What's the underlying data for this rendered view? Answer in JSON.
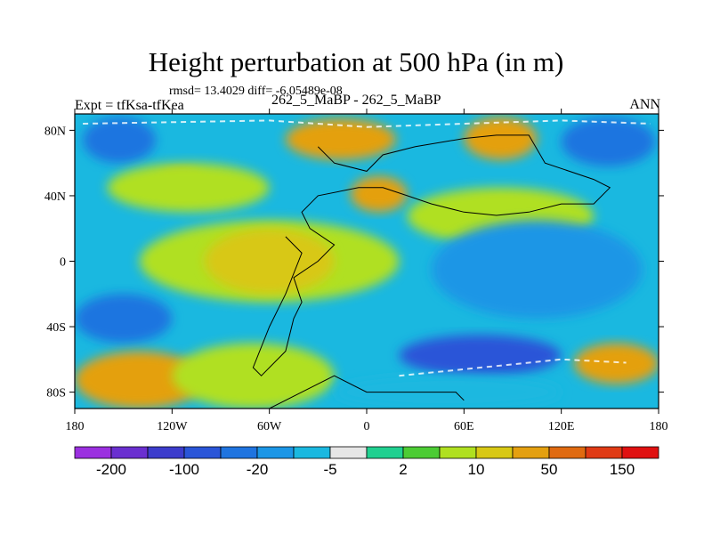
{
  "title": "Height perturbation at 500 hPa (in m)",
  "stats": "rmsd= 13.4029 diff= -6.05489e-08",
  "left_label": "Expt = tfKsa-tfKea",
  "center_label": "262_5_MaBP - 262_5_MaBP",
  "right_label": "ANN",
  "chart_data": {
    "type": "heatmap",
    "title": "Height perturbation at 500 hPa (in m)",
    "xlim": [
      -180,
      180
    ],
    "ylim": [
      -90,
      90
    ],
    "x_ticks": [
      {
        "value": -180,
        "label": "180"
      },
      {
        "value": -120,
        "label": "120W"
      },
      {
        "value": -60,
        "label": "60W"
      },
      {
        "value": 0,
        "label": "0"
      },
      {
        "value": 60,
        "label": "60E"
      },
      {
        "value": 120,
        "label": "120E"
      },
      {
        "value": 180,
        "label": "180"
      }
    ],
    "y_ticks": [
      {
        "value": 80,
        "label": "80N"
      },
      {
        "value": 40,
        "label": "40N"
      },
      {
        "value": 0,
        "label": "0"
      },
      {
        "value": -40,
        "label": "40S"
      },
      {
        "value": -80,
        "label": "80S"
      }
    ],
    "colorbar": {
      "colors": [
        "#9b30e0",
        "#6a2fd0",
        "#3c3ccc",
        "#2a55d8",
        "#1f74e0",
        "#1b96e6",
        "#1ab8e0",
        "#e6e6e6",
        "#20d090",
        "#4ccc34",
        "#b0e020",
        "#d8c814",
        "#e4a010",
        "#e06a10",
        "#e03a14",
        "#e01010"
      ],
      "labels": [
        {
          "boundary": 1,
          "label": "-200"
        },
        {
          "boundary": 3,
          "label": "-100"
        },
        {
          "boundary": 5,
          "label": "-20"
        },
        {
          "boundary": 7,
          "label": "-5"
        },
        {
          "boundary": 9,
          "label": "2"
        },
        {
          "boundary": 11,
          "label": "10"
        },
        {
          "boundary": 13,
          "label": "50"
        },
        {
          "boundary": 15,
          "label": "150"
        }
      ]
    },
    "regions": [
      {
        "name": "background",
        "level": 6,
        "lon": [
          -180,
          180
        ],
        "lat": [
          -90,
          90
        ]
      },
      {
        "name": "north-polar-blue-west",
        "level": 4,
        "lon": [
          -175,
          -130
        ],
        "lat": [
          60,
          88
        ]
      },
      {
        "name": "north-polar-blue-east",
        "level": 4,
        "lon": [
          120,
          178
        ],
        "lat": [
          58,
          88
        ]
      },
      {
        "name": "north-yellow-atlantic",
        "level": 12,
        "lon": [
          -50,
          18
        ],
        "lat": [
          62,
          87
        ]
      },
      {
        "name": "north-yellow-eurasia",
        "level": 12,
        "lon": [
          60,
          105
        ],
        "lat": [
          62,
          88
        ]
      },
      {
        "name": "n-america-yellow",
        "level": 12,
        "lon": [
          -130,
          -100
        ],
        "lat": [
          38,
          56
        ]
      },
      {
        "name": "n-america-green",
        "level": 10,
        "lon": [
          -160,
          -60
        ],
        "lat": [
          30,
          60
        ]
      },
      {
        "name": "n-europe-yellow",
        "level": 12,
        "lon": [
          -10,
          25
        ],
        "lat": [
          30,
          52
        ]
      },
      {
        "name": "asia-yellow",
        "level": 12,
        "lon": [
          60,
          110
        ],
        "lat": [
          22,
          38
        ]
      },
      {
        "name": "asia-green",
        "level": 10,
        "lon": [
          25,
          140
        ],
        "lat": [
          10,
          45
        ]
      },
      {
        "name": "tropical-green",
        "level": 10,
        "lon": [
          -140,
          20
        ],
        "lat": [
          -25,
          25
        ]
      },
      {
        "name": "tropical-yellow",
        "level": 11,
        "lon": [
          -100,
          -20
        ],
        "lat": [
          -20,
          20
        ]
      },
      {
        "name": "pacific-blue",
        "level": 5,
        "lon": [
          40,
          170
        ],
        "lat": [
          -35,
          25
        ]
      },
      {
        "name": "s-pacific-blue-west",
        "level": 4,
        "lon": [
          -180,
          -120
        ],
        "lat": [
          -50,
          -20
        ]
      },
      {
        "name": "south-yellow-west",
        "level": 12,
        "lon": [
          -180,
          -100
        ],
        "lat": [
          -90,
          -55
        ]
      },
      {
        "name": "south-yellow-east",
        "level": 12,
        "lon": [
          128,
          180
        ],
        "lat": [
          -75,
          -50
        ]
      },
      {
        "name": "south-green-atlantic",
        "level": 10,
        "lon": [
          -120,
          -20
        ],
        "lat": [
          -90,
          -50
        ]
      },
      {
        "name": "southern-ocean-blue",
        "level": 3,
        "lon": [
          20,
          120
        ],
        "lat": [
          -70,
          -45
        ]
      },
      {
        "name": "south-polar-cyan",
        "level": 6,
        "lon": [
          -20,
          120
        ],
        "lat": [
          -90,
          -70
        ]
      }
    ],
    "coastline": [
      [
        [
          -80,
          -90
        ],
        [
          -60,
          -90
        ],
        [
          -40,
          -80
        ],
        [
          -20,
          -70
        ],
        [
          0,
          -80
        ],
        [
          30,
          -80
        ],
        [
          55,
          -80
        ],
        [
          60,
          -85
        ]
      ],
      [
        [
          -30,
          70
        ],
        [
          -20,
          60
        ],
        [
          0,
          55
        ],
        [
          10,
          65
        ],
        [
          30,
          70
        ],
        [
          60,
          75
        ],
        [
          80,
          77
        ],
        [
          100,
          77
        ],
        [
          110,
          60
        ],
        [
          140,
          50
        ],
        [
          150,
          45
        ],
        [
          140,
          35
        ],
        [
          120,
          35
        ],
        [
          100,
          30
        ],
        [
          80,
          28
        ],
        [
          60,
          30
        ],
        [
          40,
          35
        ],
        [
          25,
          40
        ],
        [
          10,
          45
        ],
        [
          -5,
          45
        ],
        [
          -30,
          40
        ],
        [
          -40,
          30
        ],
        [
          -35,
          20
        ],
        [
          -20,
          10
        ],
        [
          -30,
          0
        ],
        [
          -45,
          -10
        ],
        [
          -40,
          -25
        ],
        [
          -45,
          -35
        ],
        [
          -50,
          -55
        ],
        [
          -65,
          -70
        ],
        [
          -70,
          -65
        ],
        [
          -60,
          -40
        ],
        [
          -50,
          -20
        ],
        [
          -40,
          5
        ],
        [
          -50,
          15
        ]
      ]
    ],
    "dashed_curves": [
      [
        [
          -175,
          84
        ],
        [
          -60,
          86
        ],
        [
          0,
          82
        ],
        [
          60,
          84
        ],
        [
          120,
          86
        ],
        [
          175,
          84
        ]
      ],
      [
        [
          20,
          -70
        ],
        [
          60,
          -66
        ],
        [
          120,
          -60
        ],
        [
          160,
          -62
        ]
      ]
    ]
  }
}
